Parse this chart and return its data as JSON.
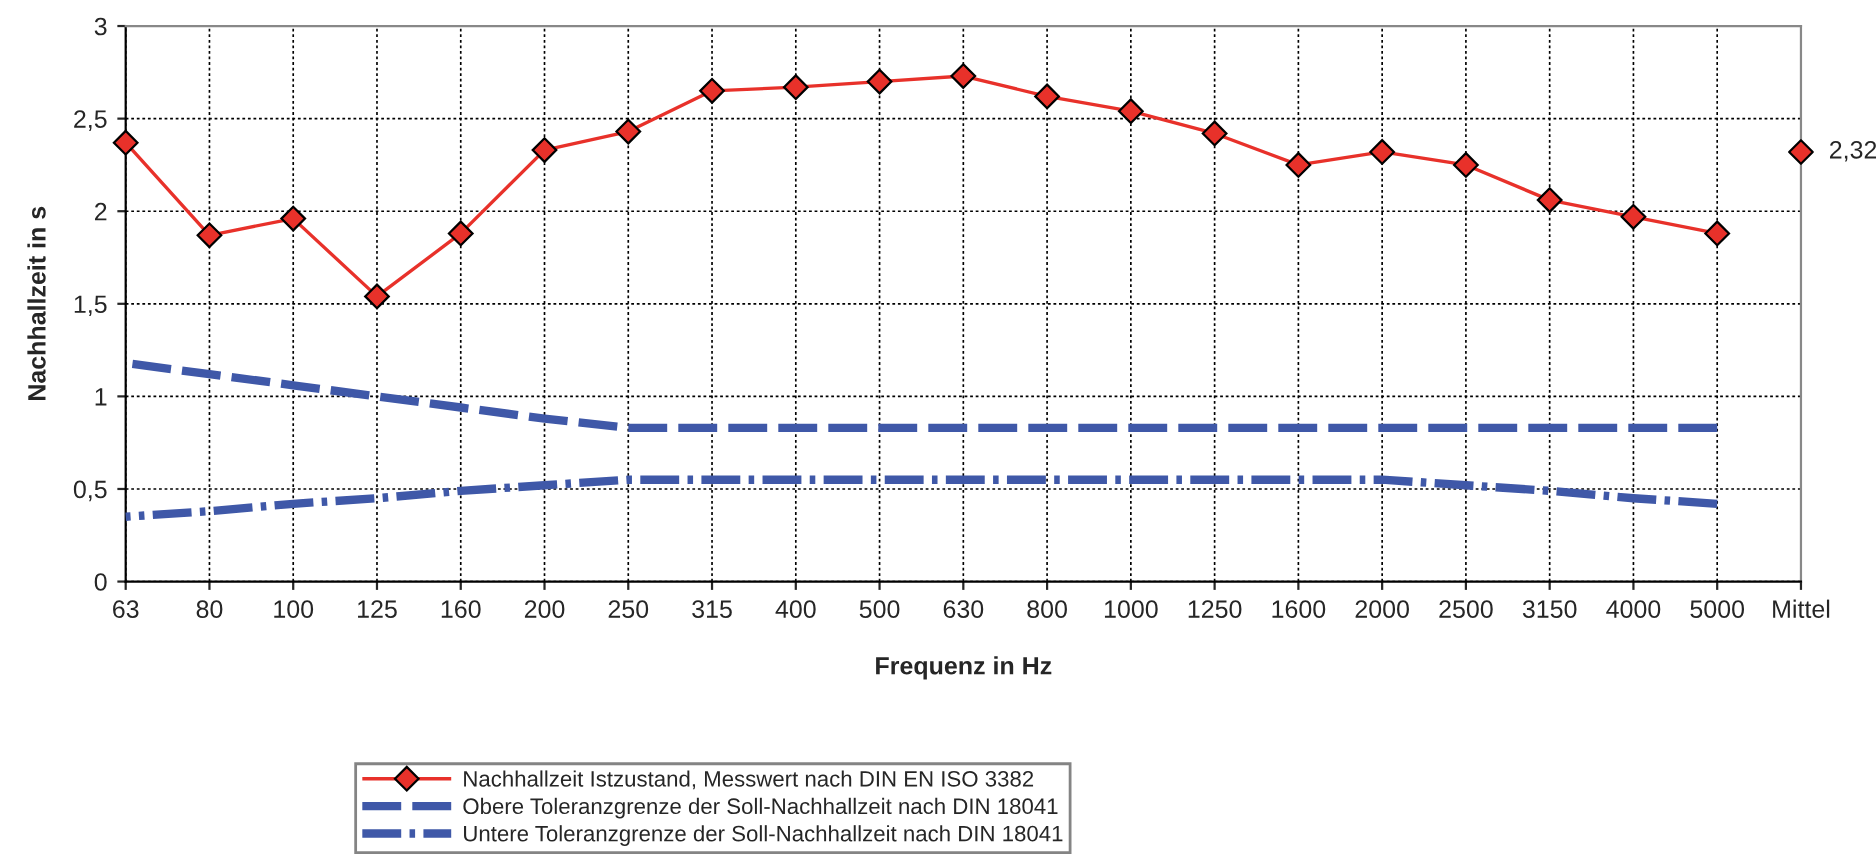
{
  "chart_data": {
    "type": "line",
    "xlabel": "Frequenz in Hz",
    "ylabel": "Nachhallzeit in s",
    "categories": [
      "63",
      "80",
      "100",
      "125",
      "160",
      "200",
      "250",
      "315",
      "400",
      "500",
      "630",
      "800",
      "1000",
      "1250",
      "1600",
      "2000",
      "2500",
      "3150",
      "4000",
      "5000",
      "Mittel"
    ],
    "series": [
      {
        "name": "Nachhallzeit Istzustand, Messwert nach DIN EN ISO 3382",
        "color": "#e8312a",
        "marker": "diamond",
        "line_style": "solid",
        "values": [
          2.37,
          1.87,
          1.96,
          1.54,
          1.88,
          2.33,
          2.43,
          2.65,
          2.67,
          2.7,
          2.73,
          2.62,
          2.54,
          2.42,
          2.25,
          2.32,
          2.25,
          2.06,
          1.97,
          1.88,
          null
        ]
      },
      {
        "name": "Obere Toleranzgrenze der Soll-Nachhallzeit nach DIN 18041",
        "color": "#3f58a8",
        "marker": "none",
        "line_style": "dashed",
        "values": [
          1.18,
          1.12,
          1.06,
          1.0,
          0.94,
          0.88,
          0.83,
          0.83,
          0.83,
          0.83,
          0.83,
          0.83,
          0.83,
          0.83,
          0.83,
          0.83,
          0.83,
          0.83,
          0.83,
          0.83,
          null
        ]
      },
      {
        "name": "Untere Toleranzgrenze der Soll-Nachhallzeit nach DIN 18041",
        "color": "#3f58a8",
        "marker": "none",
        "line_style": "dashdot",
        "values": [
          0.35,
          0.38,
          0.42,
          0.45,
          0.49,
          0.52,
          0.55,
          0.55,
          0.55,
          0.55,
          0.55,
          0.55,
          0.55,
          0.55,
          0.55,
          0.55,
          0.52,
          0.49,
          0.45,
          0.42,
          null
        ]
      },
      {
        "type": "scatter",
        "color": "#e8312a",
        "marker": "diamond",
        "values": [
          null,
          null,
          null,
          null,
          null,
          null,
          null,
          null,
          null,
          null,
          null,
          null,
          null,
          null,
          null,
          null,
          null,
          null,
          null,
          null,
          2.32
        ],
        "value_labels": [
          null,
          null,
          null,
          null,
          null,
          null,
          null,
          null,
          null,
          null,
          null,
          null,
          null,
          null,
          null,
          null,
          null,
          null,
          null,
          null,
          "2,32"
        ]
      }
    ],
    "ylim": [
      0,
      3
    ],
    "yticks": [
      0,
      {
        "value": 0.5,
        "label": "0,5"
      },
      1,
      {
        "value": 1.5,
        "label": "1,5"
      },
      2,
      {
        "value": 2.5,
        "label": "2,5"
      },
      3
    ],
    "grid": true,
    "legend": "bottom"
  }
}
